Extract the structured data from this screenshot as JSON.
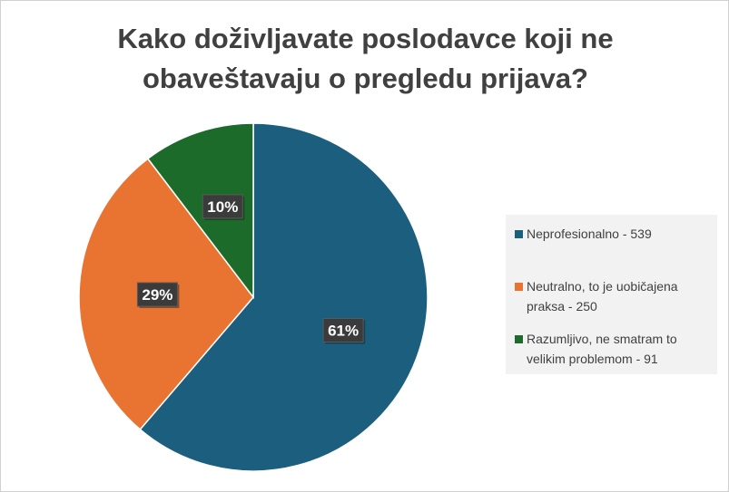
{
  "chart_data": {
    "type": "pie",
    "title": "Kako doživljavate poslodavce koji ne obaveštavaju o pregledu prijava?",
    "slices": [
      {
        "label": "Neprofesionalno - 539",
        "value": 539,
        "percent_label": "61%",
        "color": "#1b5e7e"
      },
      {
        "label": "Neutralno, to je uobičajena praksa - 250",
        "value": 250,
        "percent_label": "29%",
        "color": "#e97432"
      },
      {
        "label": "Razumljivo, ne smatram to velikim problemom - 91",
        "value": 91,
        "percent_label": "10%",
        "color": "#1c6b2a"
      }
    ],
    "legend_position": "right",
    "start_angle_deg": 0,
    "direction": "clockwise"
  }
}
